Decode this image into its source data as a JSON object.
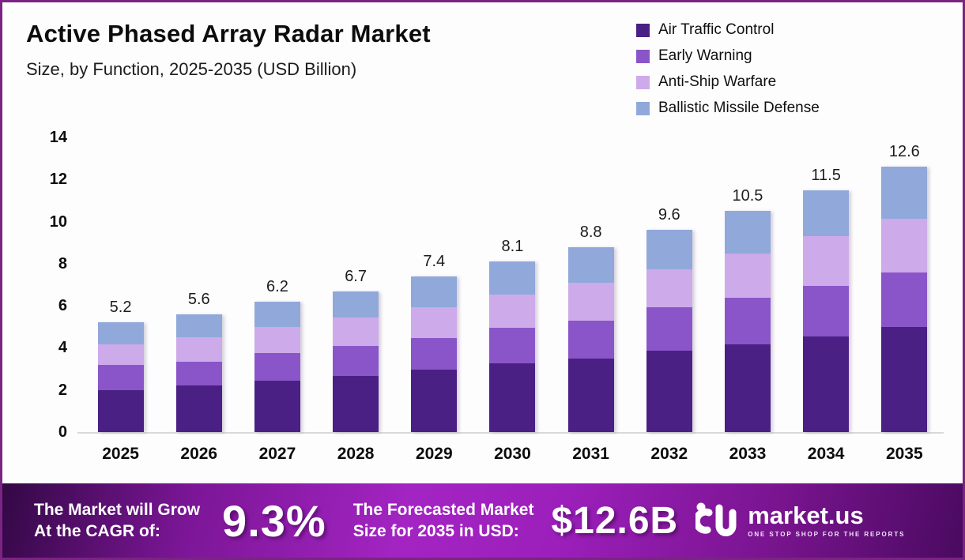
{
  "header": {
    "title": "Active Phased Array Radar Market",
    "subtitle": "Size, by Function, 2025-2035 (USD Billion)"
  },
  "legend": [
    {
      "label": "Air Traffic Control",
      "color": "#4a2084"
    },
    {
      "label": "Early Warning",
      "color": "#8a55c8"
    },
    {
      "label": "Anti-Ship Warfare",
      "color": "#cdaaea"
    },
    {
      "label": "Ballistic Missile Defense",
      "color": "#90a8da"
    }
  ],
  "chart_data": {
    "type": "bar",
    "stacked": true,
    "title": "Active Phased Array Radar Market Size, by Function, 2025-2035 (USD Billion)",
    "xlabel": "",
    "ylabel": "USD Billion",
    "ylim": [
      0,
      14
    ],
    "yticks": [
      0,
      2,
      4,
      6,
      8,
      10,
      12,
      14
    ],
    "grid": false,
    "legend_position": "top-right",
    "categories": [
      "2025",
      "2026",
      "2027",
      "2028",
      "2029",
      "2030",
      "2031",
      "2032",
      "2033",
      "2034",
      "2035"
    ],
    "series": [
      {
        "name": "Air Traffic Control",
        "color": "#4a2084",
        "values": [
          2.0,
          2.2,
          2.45,
          2.65,
          2.95,
          3.25,
          3.5,
          3.85,
          4.15,
          4.55,
          5.0
        ]
      },
      {
        "name": "Early Warning",
        "color": "#8a55c8",
        "values": [
          1.2,
          1.15,
          1.3,
          1.45,
          1.5,
          1.7,
          1.8,
          2.1,
          2.25,
          2.4,
          2.6
        ]
      },
      {
        "name": "Anti-Ship Warfare",
        "color": "#cdaaea",
        "values": [
          0.95,
          1.15,
          1.25,
          1.35,
          1.5,
          1.6,
          1.8,
          1.8,
          2.1,
          2.35,
          2.55
        ]
      },
      {
        "name": "Ballistic Missile Defense",
        "color": "#90a8da",
        "values": [
          1.05,
          1.1,
          1.2,
          1.25,
          1.45,
          1.55,
          1.7,
          1.85,
          2.0,
          2.2,
          2.45
        ]
      }
    ],
    "totals": [
      "5.2",
      "5.6",
      "6.2",
      "6.7",
      "7.4",
      "8.1",
      "8.8",
      "9.6",
      "10.5",
      "11.5",
      "12.6"
    ]
  },
  "banner": {
    "cagr_label_line1": "The Market will Grow",
    "cagr_label_line2": "At the CAGR of:",
    "cagr_value": "9.3%",
    "forecast_label_line1": "The Forecasted Market",
    "forecast_label_line2": "Size for 2035 in USD:",
    "forecast_value": "$12.6B",
    "logo_text": "market.us",
    "logo_tagline": "ONE STOP SHOP FOR THE REPORTS"
  },
  "colors": {
    "page_border": "#7b2483",
    "banner_gradient_center": "#a324c2",
    "banner_gradient_edge": "#330845",
    "axis_line": "#d9d9d9"
  }
}
